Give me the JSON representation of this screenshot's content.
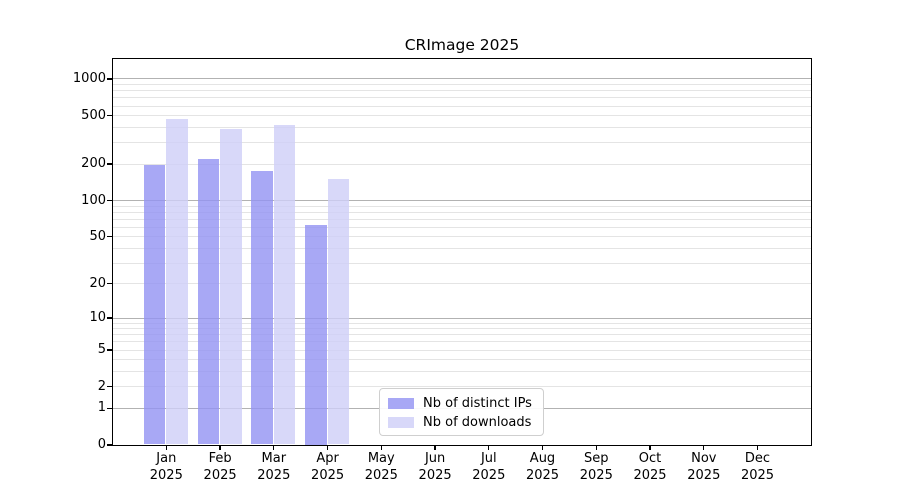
{
  "title": "CRImage 2025",
  "legend": {
    "items": [
      {
        "label": "Nb of distinct IPs"
      },
      {
        "label": "Nb of downloads"
      }
    ]
  },
  "colors": {
    "ips_bar": "rgba(146,146,242,0.8)",
    "downloads_bar": "rgba(206,206,247,0.8)",
    "major_grid": "#b2b2b2",
    "minor_grid": "#e4e4e4"
  },
  "x_axis": {
    "months": [
      {
        "line1": "Jan",
        "line2": "2025"
      },
      {
        "line1": "Feb",
        "line2": "2025"
      },
      {
        "line1": "Mar",
        "line2": "2025"
      },
      {
        "line1": "Apr",
        "line2": "2025"
      },
      {
        "line1": "May",
        "line2": "2025"
      },
      {
        "line1": "Jun",
        "line2": "2025"
      },
      {
        "line1": "Jul",
        "line2": "2025"
      },
      {
        "line1": "Aug",
        "line2": "2025"
      },
      {
        "line1": "Sep",
        "line2": "2025"
      },
      {
        "line1": "Oct",
        "line2": "2025"
      },
      {
        "line1": "Nov",
        "line2": "2025"
      },
      {
        "line1": "Dec",
        "line2": "2025"
      }
    ]
  },
  "chart_data": {
    "type": "bar",
    "title": "CRImage 2025",
    "categories": [
      "Jan 2025",
      "Feb 2025",
      "Mar 2025",
      "Apr 2025",
      "May 2025",
      "Jun 2025",
      "Jul 2025",
      "Aug 2025",
      "Sep 2025",
      "Oct 2025",
      "Nov 2025",
      "Dec 2025"
    ],
    "series": [
      {
        "name": "Nb of distinct IPs",
        "color": "#a8a8f2",
        "values": [
          194,
          217,
          174,
          62,
          null,
          null,
          null,
          null,
          null,
          null,
          null,
          null
        ]
      },
      {
        "name": "Nb of downloads",
        "color": "#d8d8f8",
        "values": [
          463,
          382,
          413,
          150,
          null,
          null,
          null,
          null,
          null,
          null,
          null,
          null
        ]
      }
    ],
    "y_scale": "log1p",
    "y_ticks": [
      0,
      1,
      2,
      5,
      10,
      20,
      50,
      100,
      200,
      500,
      1000
    ],
    "minor_gridlines": [
      2,
      3,
      4,
      5,
      6,
      7,
      8,
      9,
      20,
      30,
      40,
      50,
      60,
      70,
      80,
      90,
      200,
      300,
      400,
      500,
      600,
      700,
      800,
      900
    ],
    "major_gridlines": [
      1,
      10,
      100,
      1000
    ],
    "ylim": [
      0,
      1390
    ],
    "xlabel": "",
    "ylabel": "",
    "grid": true,
    "legend_position": "inside-bottom-center-right"
  }
}
